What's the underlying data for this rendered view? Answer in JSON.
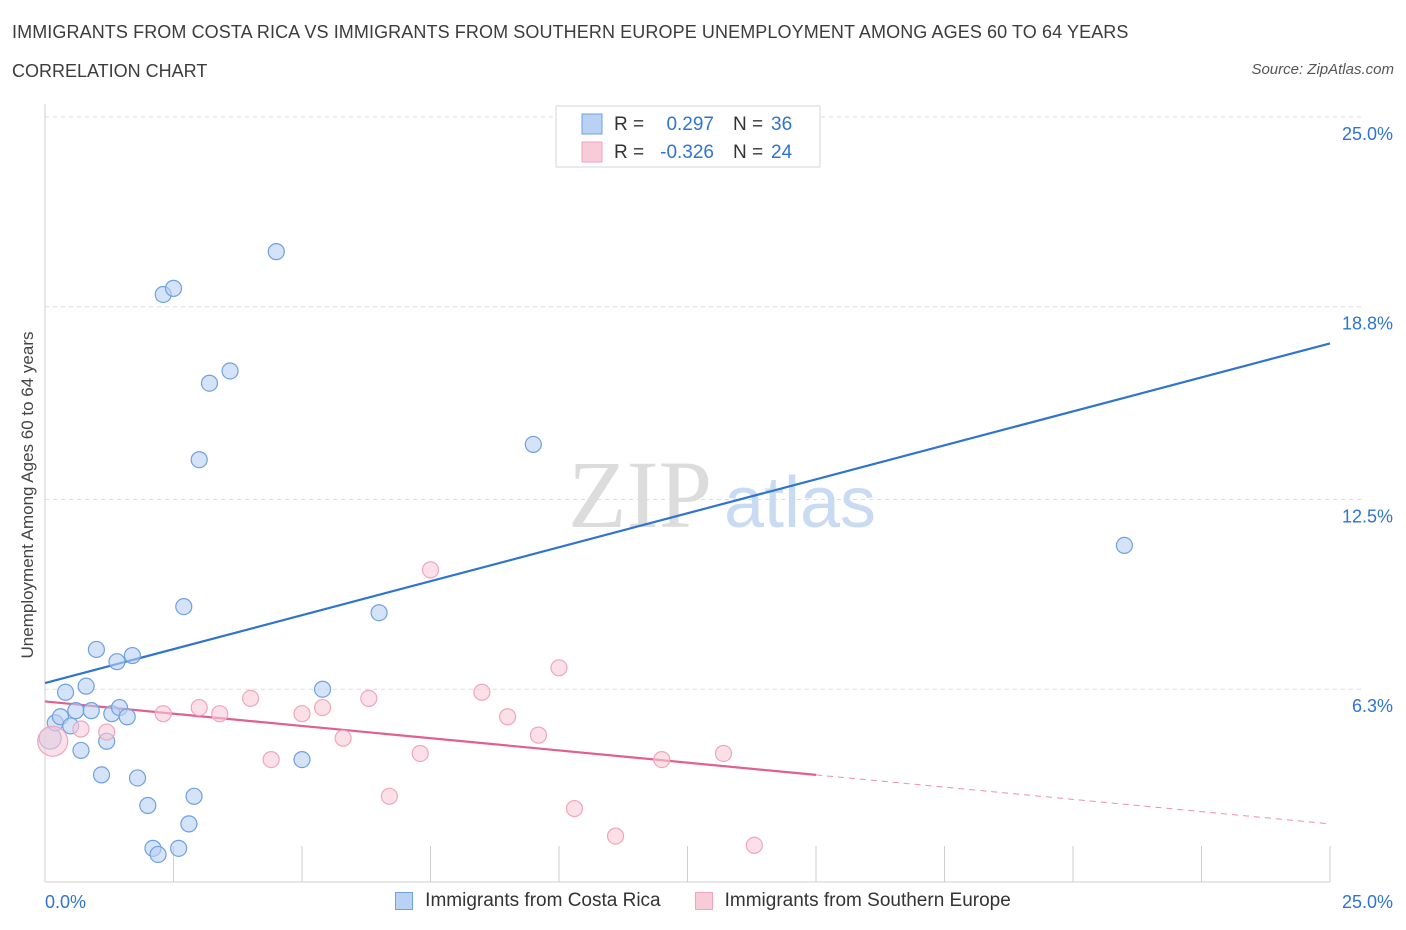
{
  "header": {
    "title": "IMMIGRANTS FROM COSTA RICA VS IMMIGRANTS FROM SOUTHERN EUROPE UNEMPLOYMENT AMONG AGES 60 TO 64 YEARS",
    "subtitle": "CORRELATION CHART",
    "source": "Source: ZipAtlas.com"
  },
  "watermark": {
    "zip": "ZIP",
    "atlas": "atlas"
  },
  "chart_data": {
    "type": "scatter",
    "ylabel": "Unemployment Among Ages 60 to 64 years",
    "xlim": [
      0,
      25
    ],
    "ylim": [
      0,
      25
    ],
    "x_tick_labels": [
      {
        "value": 0,
        "label": "0.0%"
      },
      {
        "value": 25,
        "label": "25.0%"
      }
    ],
    "y_tick_labels": [
      {
        "value": 6.3,
        "label": "6.3%"
      },
      {
        "value": 12.5,
        "label": "12.5%"
      },
      {
        "value": 18.8,
        "label": "18.8%"
      },
      {
        "value": 25.0,
        "label": "25.0%"
      }
    ],
    "grid": true,
    "legend_position": "top-center",
    "series": [
      {
        "name": "Immigrants from Costa Rica",
        "color": "#6fa0e0",
        "fill": "#b9d1f3",
        "line_color": "#2f74d0",
        "R": "0.297",
        "N": "36",
        "trend": {
          "x0": 0,
          "y0": 6.5,
          "x1": 25,
          "y1": 17.6,
          "dashed_from": null
        },
        "points": [
          [
            0.1,
            4.7
          ],
          [
            0.2,
            5.2
          ],
          [
            0.3,
            5.4
          ],
          [
            0.4,
            6.2
          ],
          [
            0.5,
            5.1
          ],
          [
            0.6,
            5.6
          ],
          [
            0.7,
            4.3
          ],
          [
            0.8,
            6.4
          ],
          [
            0.9,
            5.6
          ],
          [
            1.0,
            7.6
          ],
          [
            1.1,
            3.5
          ],
          [
            1.2,
            4.6
          ],
          [
            1.3,
            5.5
          ],
          [
            1.4,
            7.2
          ],
          [
            1.45,
            5.7
          ],
          [
            1.6,
            5.4
          ],
          [
            1.7,
            7.4
          ],
          [
            1.8,
            3.4
          ],
          [
            2.0,
            2.5
          ],
          [
            2.1,
            1.1
          ],
          [
            2.2,
            0.9
          ],
          [
            2.3,
            19.2
          ],
          [
            2.5,
            19.4
          ],
          [
            2.6,
            1.1
          ],
          [
            2.7,
            9.0
          ],
          [
            2.8,
            1.9
          ],
          [
            2.9,
            2.8
          ],
          [
            3.0,
            13.8
          ],
          [
            3.2,
            16.3
          ],
          [
            3.6,
            16.7
          ],
          [
            4.5,
            20.6
          ],
          [
            5.0,
            4.0
          ],
          [
            5.4,
            6.3
          ],
          [
            6.5,
            8.8
          ],
          [
            9.5,
            14.3
          ],
          [
            21.0,
            11.0
          ]
        ]
      },
      {
        "name": "Immigrants from Southern Europe",
        "color": "#f0a5bd",
        "fill": "#f8cbd8",
        "line_color": "#e0608f",
        "R": "-0.326",
        "N": "24",
        "trend": {
          "x0": 0,
          "y0": 5.9,
          "x1": 25,
          "y1": 1.9,
          "dashed_from": 15.0
        },
        "points": [
          [
            0.15,
            4.6
          ],
          [
            0.7,
            5.0
          ],
          [
            1.2,
            4.9
          ],
          [
            2.3,
            5.5
          ],
          [
            3.0,
            5.7
          ],
          [
            3.4,
            5.5
          ],
          [
            4.0,
            6.0
          ],
          [
            4.4,
            4.0
          ],
          [
            5.0,
            5.5
          ],
          [
            5.4,
            5.7
          ],
          [
            5.8,
            4.7
          ],
          [
            6.3,
            6.0
          ],
          [
            6.7,
            2.8
          ],
          [
            7.3,
            4.2
          ],
          [
            7.5,
            10.2
          ],
          [
            8.5,
            6.2
          ],
          [
            9.0,
            5.4
          ],
          [
            9.6,
            4.8
          ],
          [
            10.0,
            7.0
          ],
          [
            10.3,
            2.4
          ],
          [
            11.1,
            1.5
          ],
          [
            12.0,
            4.0
          ],
          [
            13.2,
            4.2
          ],
          [
            13.8,
            1.2
          ]
        ]
      }
    ]
  }
}
